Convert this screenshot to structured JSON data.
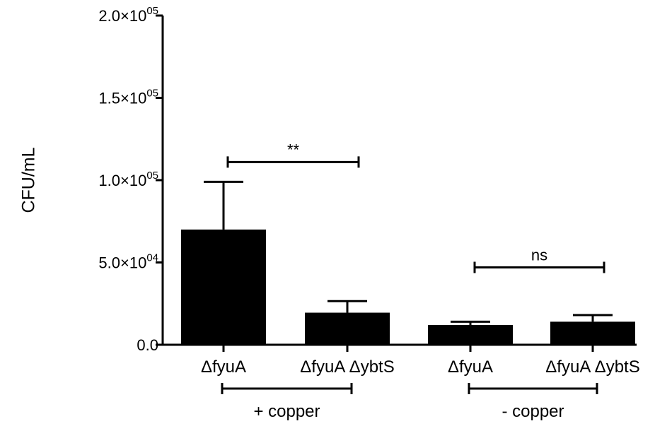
{
  "chart_data": {
    "type": "bar",
    "ylabel": "CFU/mL",
    "ylim": [
      0,
      200000
    ],
    "yticks": [
      {
        "value": 0,
        "label": "0.0"
      },
      {
        "value": 50000,
        "label": "5.0×10",
        "exp": "04"
      },
      {
        "value": 100000,
        "label": "1.0×10",
        "exp": "05"
      },
      {
        "value": 150000,
        "label": "1.5×10",
        "exp": "05"
      },
      {
        "value": 200000,
        "label": "2.0×10",
        "exp": "05"
      }
    ],
    "categories": [
      "ΔfyuA",
      "ΔfyuA ΔybtS",
      "ΔfyuA",
      "ΔfyuA ΔybtS"
    ],
    "values": [
      70000,
      19500,
      12000,
      14000
    ],
    "errors": [
      29000,
      7000,
      2000,
      4000
    ],
    "bar_color": "#000000",
    "groups": [
      {
        "label": "+ copper",
        "from": 0,
        "to": 1
      },
      {
        "label": "- copper",
        "from": 2,
        "to": 3
      }
    ],
    "significance": [
      {
        "from": 0,
        "to": 1,
        "label": "**",
        "y": 111000
      },
      {
        "from": 2,
        "to": 3,
        "label": "ns",
        "y": 47000
      }
    ]
  }
}
